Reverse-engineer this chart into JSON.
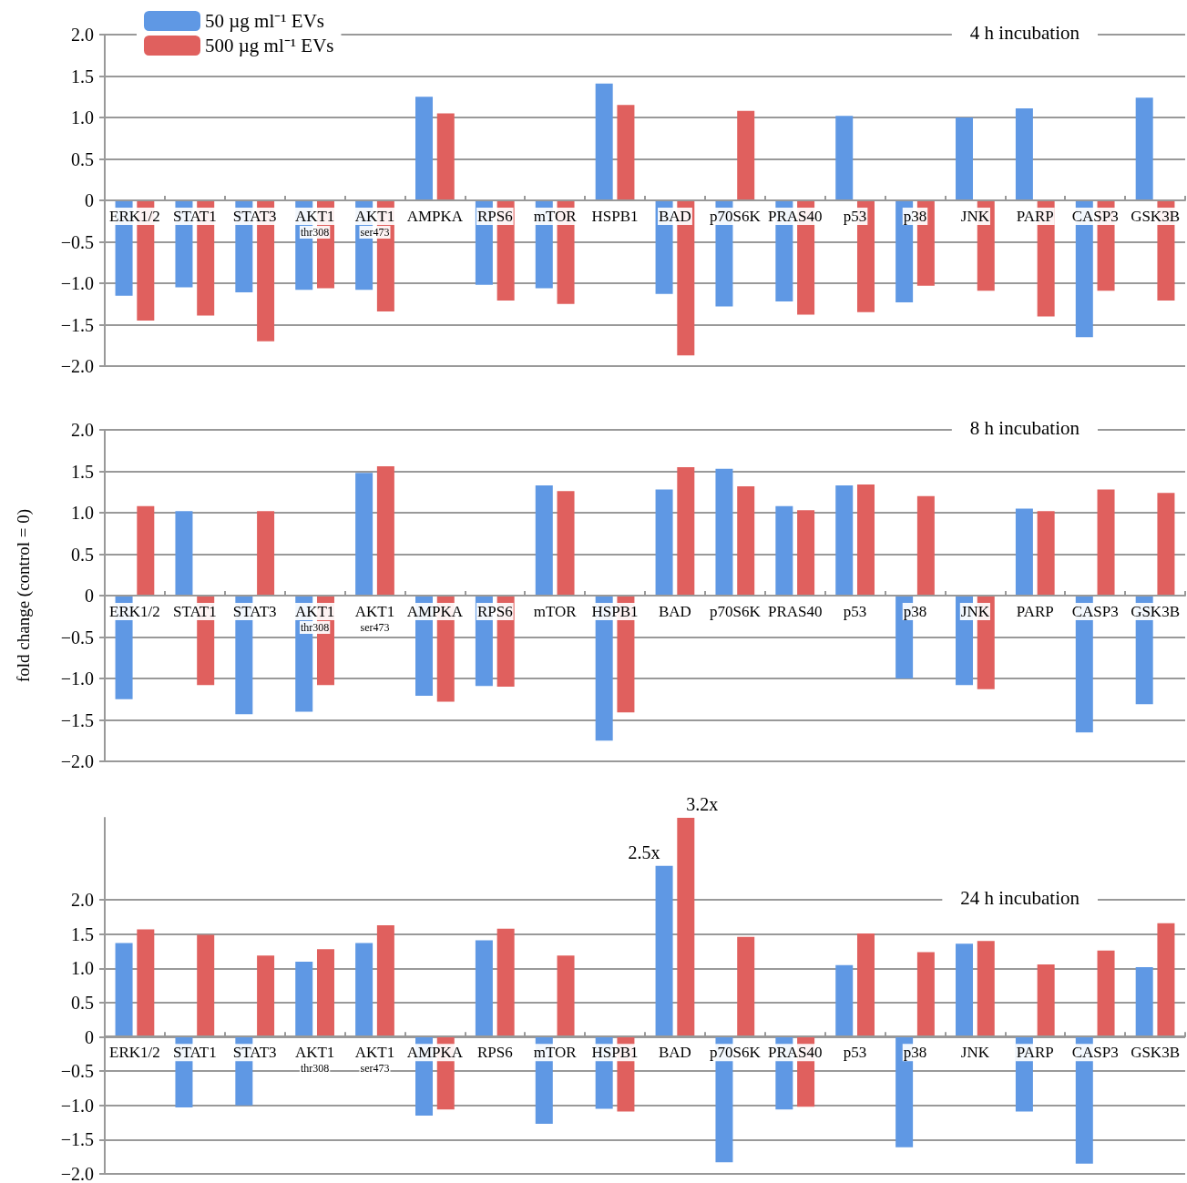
{
  "chart_data": [
    {
      "type": "bar",
      "title": "4 h incubation",
      "categories": [
        "ERK1/2",
        "STAT1",
        "STAT3",
        "AKT1 thr308",
        "AKT1 ser473",
        "AMPKA",
        "RPS6",
        "mTOR",
        "HSPB1",
        "BAD",
        "p70S6K",
        "PRAS40",
        "p53",
        "p38",
        "JNK",
        "PARP",
        "CASP3",
        "GSK3B"
      ],
      "series": [
        {
          "name": "50 µg ml⁻¹ EVs",
          "color": "#5f98e4",
          "values": [
            -1.15,
            -1.05,
            -1.11,
            -1.08,
            -1.08,
            1.25,
            -1.02,
            -1.06,
            1.41,
            -1.13,
            -1.28,
            -1.22,
            1.02,
            -1.23,
            1.0,
            1.11,
            -1.65,
            1.24
          ]
        },
        {
          "name": "500 µg ml⁻¹ EVs",
          "color": "#e0605e",
          "values": [
            -1.45,
            -1.39,
            -1.7,
            -1.06,
            -1.34,
            1.05,
            -1.21,
            -1.25,
            1.15,
            -1.87,
            1.08,
            -1.38,
            -1.35,
            -1.03,
            -1.09,
            -1.4,
            -1.09,
            -1.21
          ]
        }
      ],
      "ylim": [
        -2,
        2
      ],
      "yticks": [
        {
          "value": -2,
          "label": "−2.0"
        },
        {
          "value": -1.5,
          "label": "−1.5"
        },
        {
          "value": -1,
          "label": "−1.0"
        },
        {
          "value": -0.5,
          "label": "−0.5"
        },
        0,
        {
          "value": 0.5,
          "label": "0.5"
        },
        {
          "value": 1,
          "label": "1.0"
        },
        {
          "value": 1.5,
          "label": "1.5"
        },
        {
          "value": 2,
          "label": "2.0"
        }
      ],
      "grid": "y",
      "legend": "top left"
    },
    {
      "type": "bar",
      "title": "8 h incubation",
      "ylabel": "fold change (control = 0)",
      "categories": [
        "ERK1/2",
        "STAT1",
        "STAT3",
        "AKT1 thr308",
        "AKT1 ser473",
        "AMPKA",
        "RPS6",
        "mTOR",
        "HSPB1",
        "BAD",
        "p70S6K",
        "PRAS40",
        "p53",
        "p38",
        "JNK",
        "PARP",
        "CASP3",
        "GSK3B"
      ],
      "series": [
        {
          "color": "#5f98e4",
          "values": [
            -1.25,
            1.02,
            -1.43,
            -1.4,
            1.48,
            -1.21,
            -1.09,
            1.33,
            -1.75,
            1.28,
            1.53,
            1.08,
            1.33,
            -1.0,
            -1.08,
            1.05,
            -1.65,
            -1.31
          ]
        },
        {
          "color": "#e0605e",
          "values": [
            1.08,
            -1.08,
            1.02,
            -1.08,
            1.56,
            -1.28,
            -1.1,
            1.26,
            -1.41,
            1.55,
            1.32,
            1.03,
            1.34,
            1.2,
            -1.13,
            1.02,
            1.28,
            1.24
          ]
        }
      ],
      "ylim": [
        -2,
        2
      ],
      "yticks": [
        {
          "value": -2,
          "label": "−2.0"
        },
        {
          "value": -1.5,
          "label": "−1.5"
        },
        {
          "value": -1,
          "label": "−1.0"
        },
        {
          "value": -0.5,
          "label": "−0.5"
        },
        0,
        {
          "value": 0.5,
          "label": "0.5"
        },
        {
          "value": 1,
          "label": "1.0"
        },
        {
          "value": 1.5,
          "label": "1.5"
        },
        {
          "value": 2,
          "label": "2.0"
        }
      ],
      "grid": "y"
    },
    {
      "type": "bar",
      "title": "24 h incubation",
      "categories": [
        "ERK1/2",
        "STAT1",
        "STAT3",
        "AKT1 thr308",
        "AKT1 ser473",
        "AMPKA",
        "RPS6",
        "mTOR",
        "HSPB1",
        "BAD",
        "p70S6K",
        "PRAS40",
        "p53",
        "p38",
        "JNK",
        "PARP",
        "CASP3",
        "GSK3B"
      ],
      "series": [
        {
          "color": "#5f98e4",
          "values": [
            1.37,
            -1.03,
            -1.0,
            1.1,
            1.37,
            -1.15,
            1.41,
            -1.27,
            -1.05,
            2.5,
            -1.83,
            -1.06,
            1.05,
            -1.61,
            1.36,
            -1.09,
            -1.85,
            1.02
          ],
          "value_labels": [
            null,
            null,
            null,
            null,
            null,
            null,
            null,
            null,
            null,
            "2.5x",
            null,
            null,
            null,
            null,
            null,
            null,
            null,
            null
          ]
        },
        {
          "color": "#e0605e",
          "values": [
            1.57,
            1.49,
            1.19,
            1.28,
            1.63,
            -1.06,
            1.58,
            1.19,
            -1.09,
            3.2,
            1.46,
            -1.02,
            1.51,
            1.24,
            1.4,
            1.06,
            1.26,
            1.66
          ],
          "value_labels": [
            null,
            null,
            null,
            null,
            null,
            null,
            null,
            null,
            null,
            "3.2x",
            null,
            null,
            null,
            null,
            null,
            null,
            null,
            null
          ]
        }
      ],
      "ylim": [
        -2,
        3.2
      ],
      "yticks": [
        {
          "value": -2,
          "label": "−2.0"
        },
        {
          "value": -1.5,
          "label": "−1.5"
        },
        {
          "value": -1,
          "label": "−1.0"
        },
        {
          "value": -0.5,
          "label": "−0.5"
        },
        {
          "value": 0,
          "label": "0"
        },
        {
          "value": 0.5,
          "label": "0.5"
        },
        {
          "value": 1,
          "label": "1.0"
        },
        {
          "value": 1.5,
          "label": "1.5"
        },
        {
          "value": 2,
          "label": "2.0"
        }
      ],
      "grid": "y"
    }
  ]
}
